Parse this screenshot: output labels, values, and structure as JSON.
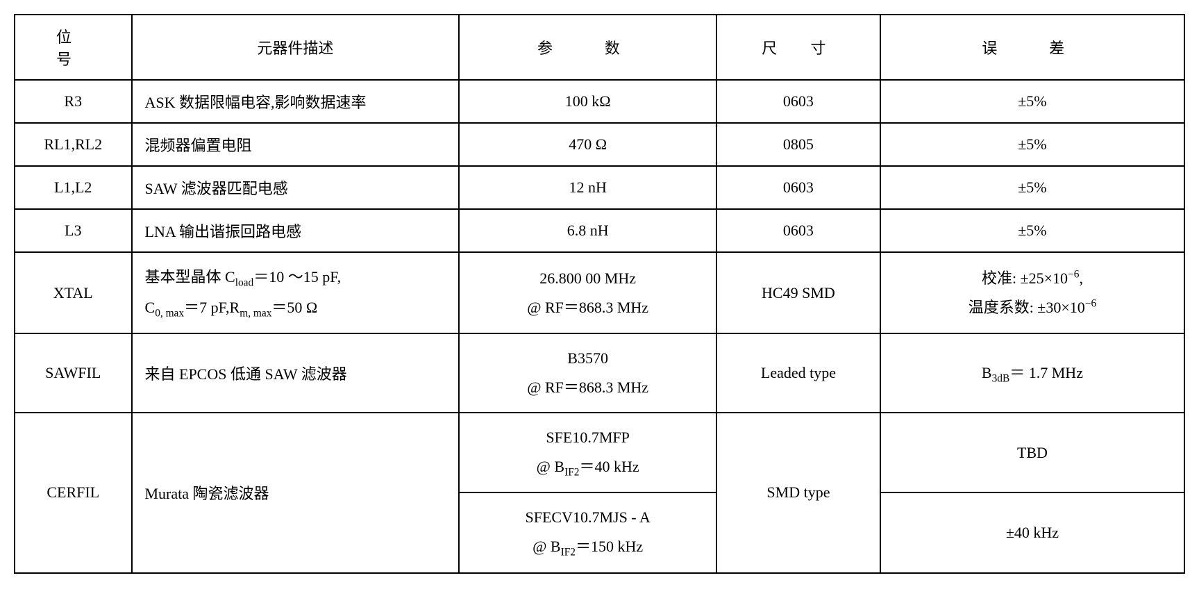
{
  "table": {
    "border_color": "#000000",
    "background_color": "#ffffff",
    "font_family": "Times New Roman / SimSun serif",
    "base_fontsize_pt": 16,
    "columns": [
      {
        "key": "ref",
        "label": "位　号",
        "width_pct": 10,
        "align": "center"
      },
      {
        "key": "desc",
        "label": "元器件描述",
        "width_pct": 28,
        "align": "left"
      },
      {
        "key": "param",
        "label": "参　数",
        "width_pct": 22,
        "align": "center"
      },
      {
        "key": "size",
        "label": "尺　寸",
        "width_pct": 14,
        "align": "center"
      },
      {
        "key": "tol",
        "label": "误　差",
        "width_pct": 26,
        "align": "center"
      }
    ],
    "rows": {
      "r3": {
        "ref": "R3",
        "desc": "ASK 数据限幅电容,影响数据速率",
        "param": "100 kΩ",
        "size": "0603",
        "tol": "±5%"
      },
      "rl": {
        "ref": "RL1,RL2",
        "desc": "混频器偏置电阻",
        "param": "470 Ω",
        "size": "0805",
        "tol": "±5%"
      },
      "l12": {
        "ref": "L1,L2",
        "desc": "SAW 滤波器匹配电感",
        "param": "12 nH",
        "size": "0603",
        "tol": "±5%"
      },
      "l3": {
        "ref": "L3",
        "desc": "LNA 输出谐振回路电感",
        "param": "6.8 nH",
        "size": "0603",
        "tol": "±5%"
      },
      "xtal": {
        "ref": "XTAL",
        "desc_line1_prefix": "基本型晶体 C",
        "desc_line1_sub": "load",
        "desc_line1_suffix": "＝10 ～15 pF,",
        "desc_line2_a": "C",
        "desc_line2_a_sub": "0, max",
        "desc_line2_a_suf": "＝7 pF,R",
        "desc_line2_b_sub": "m, max",
        "desc_line2_b_suf": "＝50 Ω",
        "param_line1": "26.800 00 MHz",
        "param_line2": "@ RF＝868.3 MHz",
        "size": "HC49 SMD",
        "tol_line1_prefix": "校准: ±25×10",
        "tol_line1_sup": "−6",
        "tol_line1_suffix": ",",
        "tol_line2_prefix": "温度系数: ±30×10",
        "tol_line2_sup": "−6"
      },
      "sawfil": {
        "ref": "SAWFIL",
        "desc": "来自 EPCOS 低通 SAW 滤波器",
        "param_line1": "B3570",
        "param_line2": "@ RF＝868.3 MHz",
        "size": "Leaded type",
        "tol_prefix": "B",
        "tol_sub": "3dB",
        "tol_suffix": "＝ 1.7 MHz"
      },
      "cerfil": {
        "ref": "CERFIL",
        "desc": "Murata 陶瓷滤波器",
        "param_a_line1": "SFE10.7MFP",
        "param_a_line2_prefix": "@ B",
        "param_a_line2_sub": "IF2",
        "param_a_line2_suffix": "＝40 kHz",
        "param_b_line1": "SFECV10.7MJS - A",
        "param_b_line2_prefix": "@ B",
        "param_b_line2_sub": "IF2",
        "param_b_line2_suffix": "＝150 kHz",
        "size": "SMD type",
        "tol_a": "TBD",
        "tol_b": "±40 kHz"
      }
    }
  }
}
